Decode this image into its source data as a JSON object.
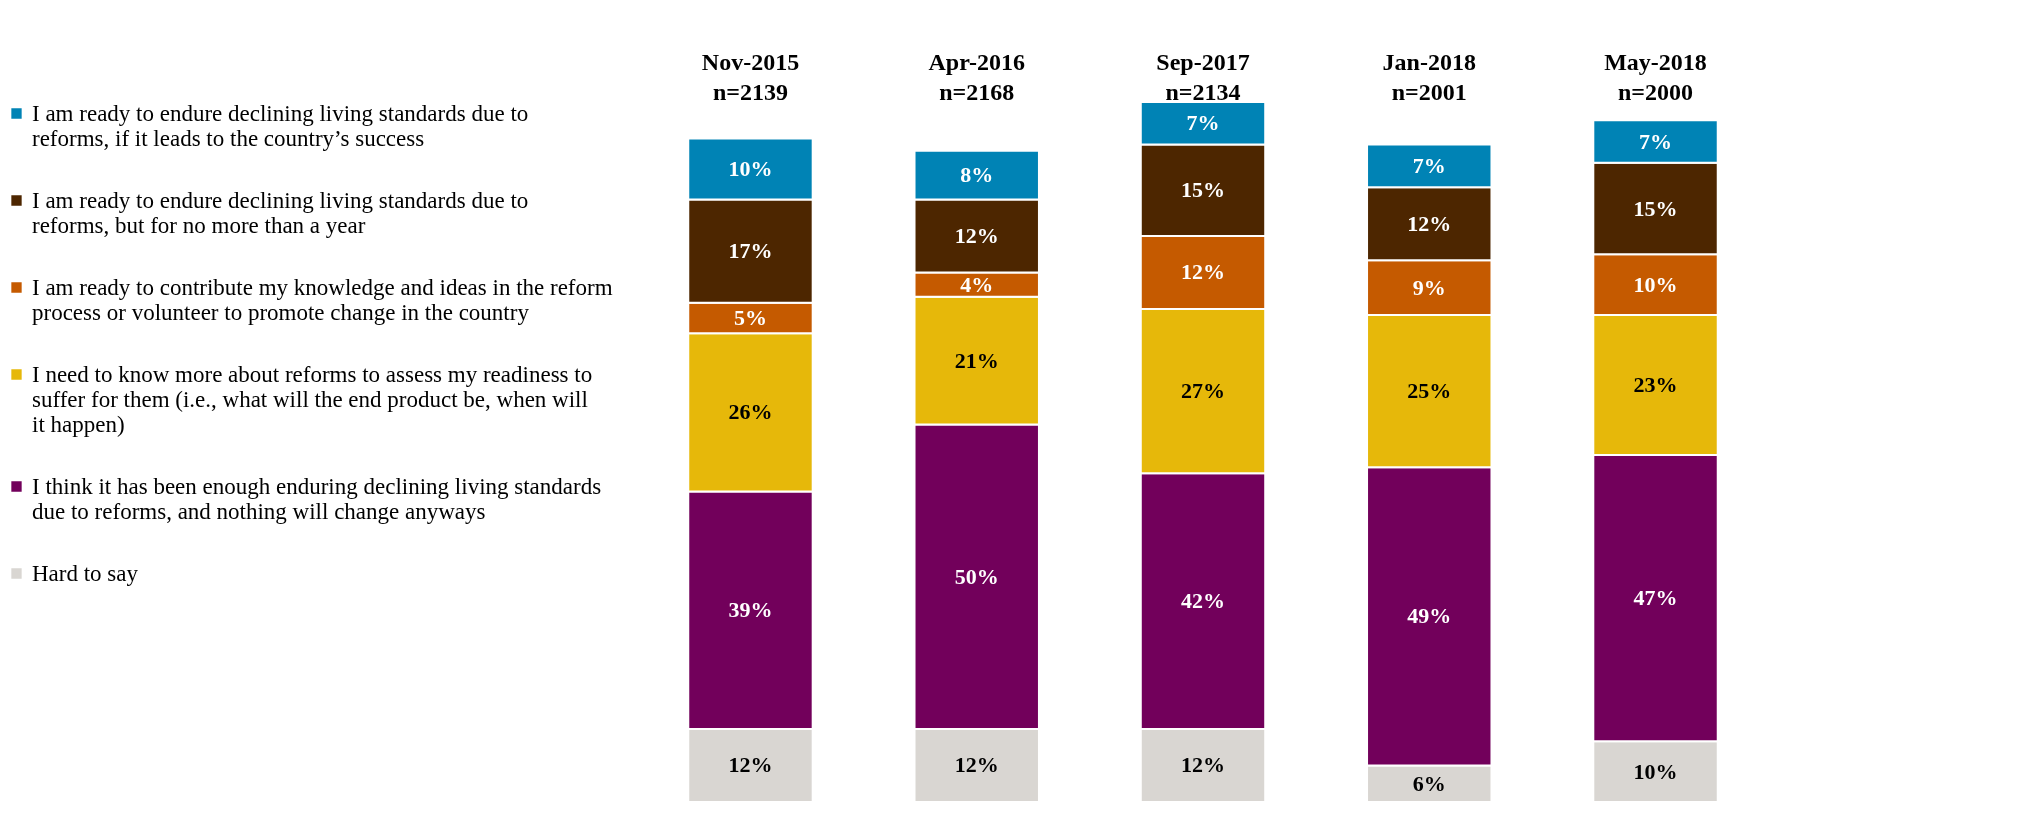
{
  "chart_data": {
    "type": "bar",
    "stacked": true,
    "legend": "left",
    "grid": false,
    "categories": [
      "Nov-2015\nn=2139",
      "Apr-2016\nn=2168",
      "Sep-2017\nn=2134",
      "Jan-2018\nn=2001",
      "May-2018\nn=2000"
    ],
    "series": [
      {
        "name": "Hard to say",
        "color": "#d9d6d2",
        "values": [
          12,
          12,
          12,
          6,
          10
        ],
        "value_labels": [
          "12%",
          "12%",
          "12%",
          "6%",
          "10%"
        ]
      },
      {
        "name": "I think it has been enough enduring declining living standards due to reforms, and nothing will change anyways",
        "color": "#72005b",
        "values": [
          39,
          50,
          42,
          49,
          47
        ],
        "value_labels": [
          "39%",
          "50%",
          "42%",
          "49%",
          "47%"
        ]
      },
      {
        "name": "I need to know more about reforms to assess my readiness to suffer for them (i.e., what will the end product be, when will it happen)",
        "color": "#e6b80a",
        "values": [
          26,
          21,
          27,
          25,
          23
        ],
        "value_labels": [
          "26%",
          "21%",
          "27%",
          "25%",
          "23%"
        ]
      },
      {
        "name": "I am ready to contribute my knowledge and ideas in the reform process or volunteer to promote change in the country",
        "color": "#c55a00",
        "values": [
          5,
          4,
          12,
          9,
          10
        ],
        "value_labels": [
          "5%",
          "4%",
          "12%",
          "9%",
          "10%"
        ]
      },
      {
        "name": "I am ready to endure declining living standards due to reforms, but for no more than a year",
        "color": "#4d2600",
        "values": [
          17,
          12,
          15,
          12,
          15
        ],
        "value_labels": [
          "17%",
          "12%",
          "15%",
          "12%",
          "15%"
        ]
      },
      {
        "name": "I am ready to endure declining living standards due to reforms, if it leads to the country’s success",
        "color": "#0083b5",
        "values": [
          10,
          8,
          7,
          7,
          7
        ],
        "value_labels": [
          "10%",
          "8%",
          "7%",
          "7%",
          "7%"
        ]
      }
    ]
  }
}
